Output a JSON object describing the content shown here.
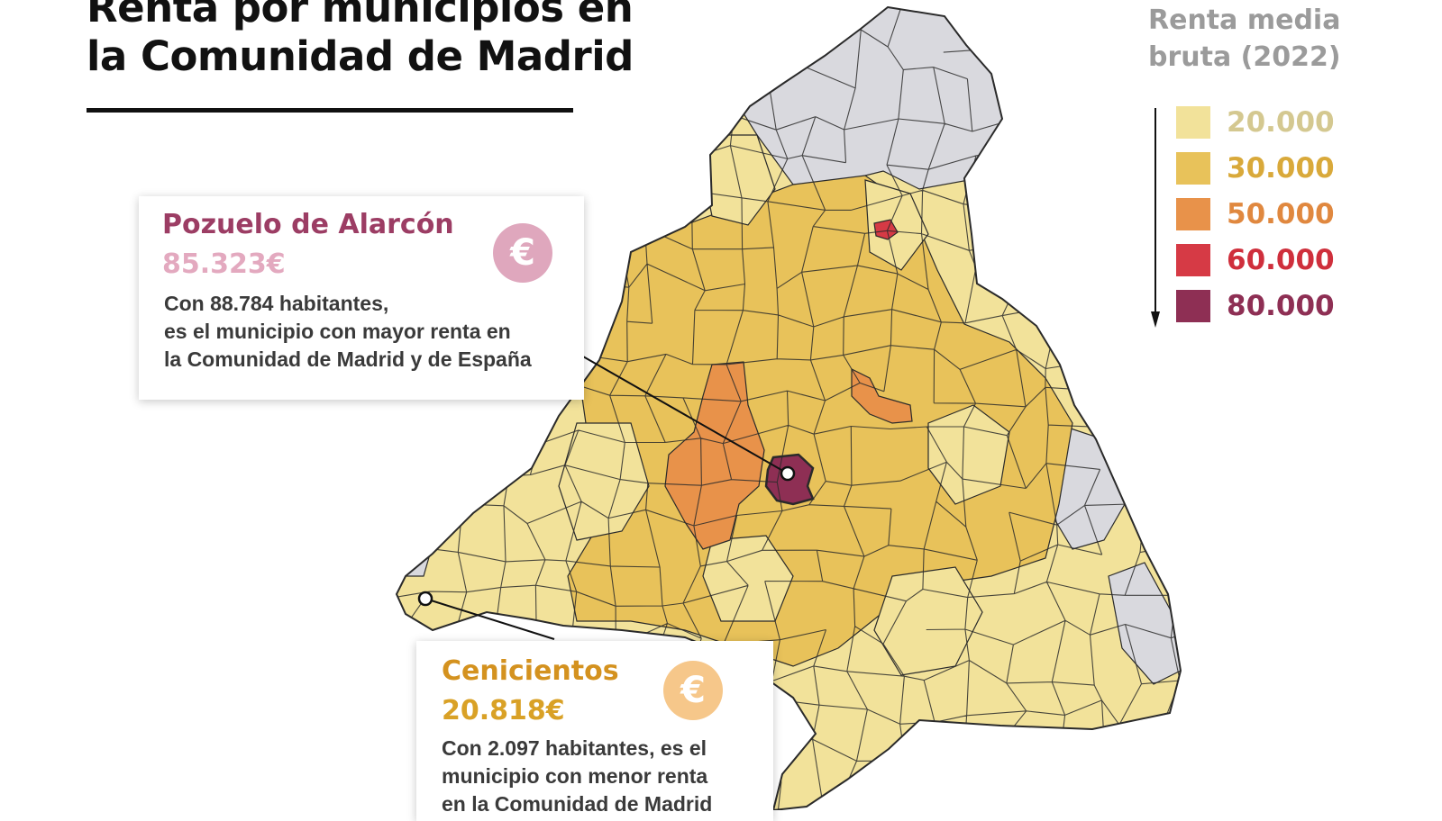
{
  "title": {
    "line1": "Renta por municipios en",
    "line2": "la Comunidad de Madrid"
  },
  "legend": {
    "title_line1": "Renta media",
    "title_line2": "bruta (2022)",
    "items": [
      {
        "label": "20.000",
        "swatch": "#f2e29a",
        "text_color": "#d4c890"
      },
      {
        "label": "30.000",
        "swatch": "#e8c25a",
        "text_color": "#d9a93a"
      },
      {
        "label": "50.000",
        "swatch": "#e8924a",
        "text_color": "#e0883f"
      },
      {
        "label": "60.000",
        "swatch": "#d63a45",
        "text_color": "#cf2f3c"
      },
      {
        "label": "80.000",
        "swatch": "#8e2f54",
        "text_color": "#8e2f54"
      }
    ]
  },
  "colors": {
    "tier_20000": "#f2e29a",
    "tier_30000": "#e8c25a",
    "tier_50000": "#e8924a",
    "tier_60000": "#d63a45",
    "tier_80000": "#8e2f54",
    "no_data": "#d9d9de",
    "border": "#2a2a2a"
  },
  "callouts": {
    "highest": {
      "name": "Pozuelo de Alarcón",
      "value": "85.323€",
      "desc_line1": "Con 88.784 habitantes,",
      "desc_line2": "es el municipio con mayor renta en",
      "desc_line3": "la Comunidad de Madrid y de España",
      "name_color": "#9c3d64",
      "value_color": "#e3a9bf",
      "icon_color": "#dfa7bd",
      "icon_symbol": "€"
    },
    "lowest": {
      "name": "Cenicientos",
      "value": "20.818€",
      "desc_line1": "Con 2.097 habitantes, es el",
      "desc_line2": "municipio con menor renta",
      "desc_line3": "en la Comunidad de Madrid",
      "name_color": "#d4921f",
      "value_color": "#d9a126",
      "icon_color": "#f6c78a",
      "icon_symbol": "€"
    }
  }
}
